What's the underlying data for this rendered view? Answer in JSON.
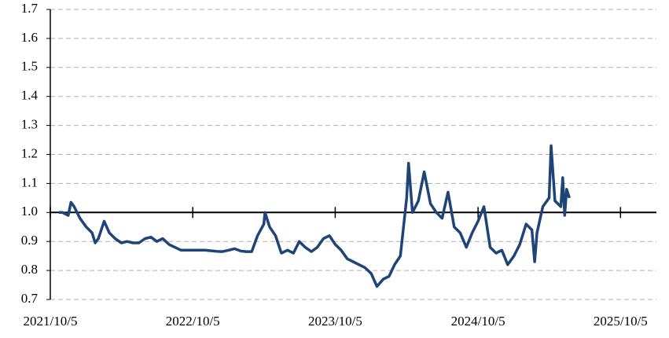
{
  "chart_data": {
    "type": "line",
    "x": [
      "2021-10-27",
      "2021-11-05",
      "2021-11-20",
      "2021-11-27",
      "2021-12-05",
      "2021-12-20",
      "2022-01-05",
      "2022-01-20",
      "2022-01-28",
      "2022-02-05",
      "2022-02-20",
      "2022-03-05",
      "2022-03-20",
      "2022-04-05",
      "2022-04-20",
      "2022-05-05",
      "2022-05-20",
      "2022-06-05",
      "2022-06-20",
      "2022-07-05",
      "2022-07-20",
      "2022-08-05",
      "2022-08-20",
      "2022-09-05",
      "2022-09-20",
      "2022-10-05",
      "2022-10-20",
      "2022-11-05",
      "2022-11-20",
      "2022-12-05",
      "2022-12-20",
      "2023-01-05",
      "2023-01-20",
      "2023-02-05",
      "2023-02-20",
      "2023-03-05",
      "2023-03-20",
      "2023-04-05",
      "2023-04-08",
      "2023-04-20",
      "2023-05-05",
      "2023-05-20",
      "2023-06-05",
      "2023-06-20",
      "2023-07-05",
      "2023-07-20",
      "2023-08-05",
      "2023-08-20",
      "2023-09-05",
      "2023-09-20",
      "2023-10-05",
      "2023-10-20",
      "2023-11-05",
      "2023-11-20",
      "2023-12-05",
      "2023-12-20",
      "2024-01-05",
      "2024-01-20",
      "2024-02-05",
      "2024-02-20",
      "2024-03-05",
      "2024-03-20",
      "2024-04-05",
      "2024-04-10",
      "2024-04-20",
      "2024-05-05",
      "2024-05-20",
      "2024-06-05",
      "2024-06-20",
      "2024-07-05",
      "2024-07-20",
      "2024-08-05",
      "2024-08-20",
      "2024-09-05",
      "2024-09-20",
      "2024-10-05",
      "2024-10-20",
      "2024-11-05",
      "2024-11-20",
      "2024-12-05",
      "2024-12-20",
      "2025-01-05",
      "2025-01-20",
      "2025-02-05",
      "2025-02-20",
      "2025-02-27",
      "2025-03-05",
      "2025-03-20",
      "2025-04-05",
      "2025-04-10",
      "2025-04-20",
      "2025-05-05",
      "2025-05-10",
      "2025-05-15",
      "2025-05-20",
      "2025-05-27"
    ],
    "series": [
      {
        "color": "#1f4478",
        "values": [
          1.0,
          1.0,
          0.99,
          1.035,
          1.02,
          0.98,
          0.95,
          0.93,
          0.895,
          0.91,
          0.97,
          0.93,
          0.91,
          0.895,
          0.9,
          0.895,
          0.895,
          0.91,
          0.915,
          0.9,
          0.91,
          0.89,
          0.88,
          0.87,
          0.87,
          0.87,
          0.87,
          0.87,
          0.868,
          0.866,
          0.865,
          0.87,
          0.875,
          0.867,
          0.865,
          0.865,
          0.92,
          0.96,
          1.0,
          0.95,
          0.92,
          0.86,
          0.87,
          0.86,
          0.9,
          0.88,
          0.865,
          0.88,
          0.91,
          0.92,
          0.89,
          0.87,
          0.84,
          0.83,
          0.82,
          0.81,
          0.79,
          0.745,
          0.77,
          0.78,
          0.82,
          0.85,
          1.05,
          1.17,
          1.0,
          1.04,
          1.14,
          1.03,
          1.0,
          0.98,
          1.07,
          0.95,
          0.93,
          0.88,
          0.93,
          0.97,
          1.02,
          0.88,
          0.86,
          0.87,
          0.82,
          0.85,
          0.89,
          0.96,
          0.94,
          0.83,
          0.93,
          1.02,
          1.05,
          1.23,
          1.04,
          1.02,
          1.12,
          0.99,
          1.08,
          1.05
        ]
      }
    ],
    "xlim": [
      "2021-10-05",
      "2026-01-05"
    ],
    "xticks": [
      {
        "value": "2021-10-05",
        "label": "2021/10/5"
      },
      {
        "value": "2022-10-05",
        "label": "2022/10/5"
      },
      {
        "value": "2023-10-05",
        "label": "2023/10/5"
      },
      {
        "value": "2024-10-05",
        "label": "2024/10/5"
      },
      {
        "value": "2025-10-05",
        "label": "2025/10/5"
      }
    ],
    "ylim": [
      0.7,
      1.7
    ],
    "yticks": [
      0.7,
      0.8,
      0.9,
      {
        "value": 1,
        "label": "1.0"
      },
      1.1,
      1.2,
      1.3,
      1.4,
      1.5,
      1.6,
      1.7
    ],
    "x_axis_at": 1,
    "grid": true
  }
}
